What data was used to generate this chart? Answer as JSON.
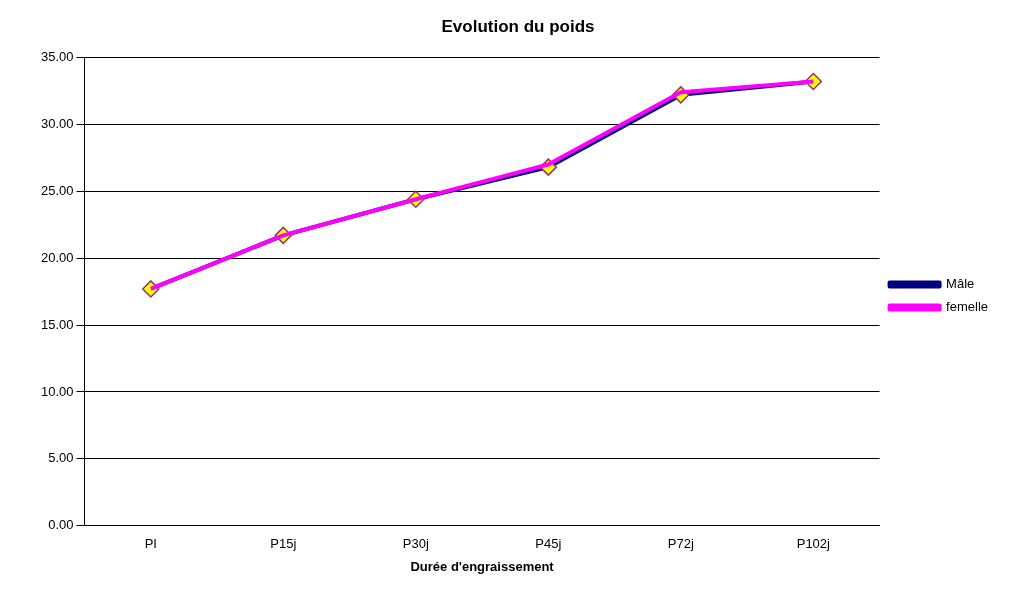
{
  "chart_data": {
    "type": "line",
    "title": "Evolution du poids",
    "xlabel": "Durée d'engraissement",
    "categories": [
      "PI",
      "P15j",
      "P30j",
      "P45j",
      "P72j",
      "P102j"
    ],
    "series": [
      {
        "name": "Mâle",
        "color": "#000080",
        "values": [
          17.7,
          21.7,
          24.4,
          26.8,
          32.2,
          33.2
        ],
        "marker": "diamond"
      },
      {
        "name": "femelle",
        "color": "#ff00ff",
        "values": [
          17.7,
          21.7,
          24.4,
          27.0,
          32.4,
          33.2
        ],
        "marker": "none"
      }
    ],
    "ylim": [
      0,
      35
    ],
    "yticks": [
      {
        "value": 0,
        "label": "0.00"
      },
      {
        "value": 5,
        "label": "5.00"
      },
      {
        "value": 10,
        "label": "10.00"
      },
      {
        "value": 15,
        "label": "15.00"
      },
      {
        "value": 20,
        "label": "20.00"
      },
      {
        "value": 25,
        "label": "25.00"
      },
      {
        "value": 30,
        "label": "30.00"
      },
      {
        "value": 35,
        "label": "35.00"
      }
    ],
    "grid": "y",
    "legend": "right"
  }
}
